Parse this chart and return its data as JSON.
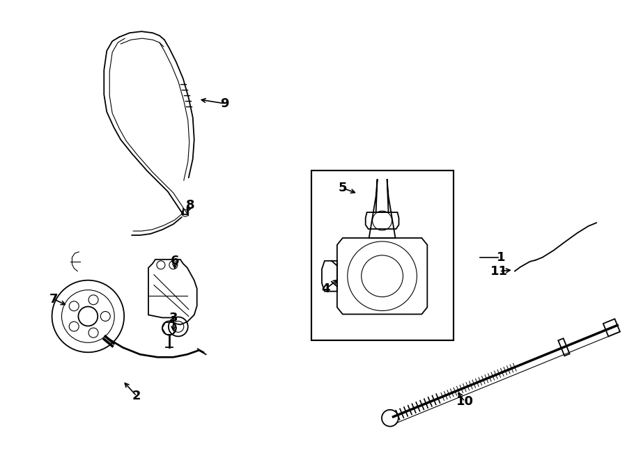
{
  "bg_color": "#ffffff",
  "line_color": "#000000",
  "fig_width": 9.0,
  "fig_height": 6.61,
  "font_size": 13
}
